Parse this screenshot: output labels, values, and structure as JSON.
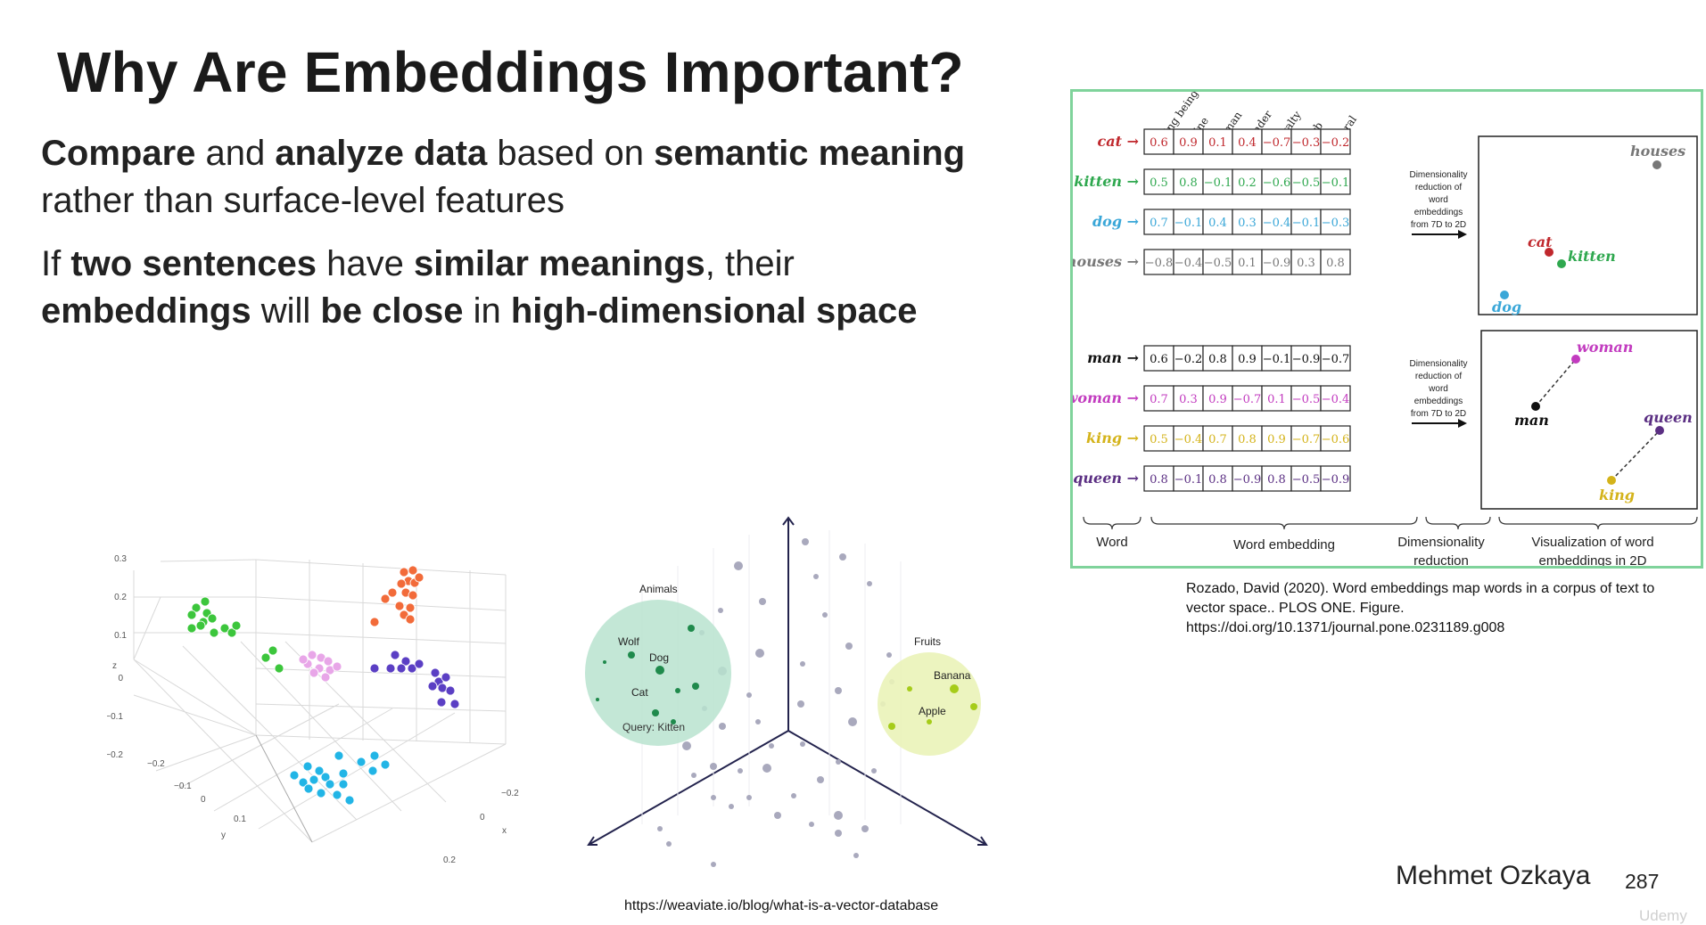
{
  "slide": {
    "title": "Why Are Embeddings Important?",
    "p1": {
      "s1": "Compare",
      "s2": " and ",
      "s3": "analyze data",
      "s4": " based on ",
      "s5": "semantic meaning",
      "s6": "rather than surface-level features"
    },
    "p2": {
      "s1": "If ",
      "s2": "two sentences",
      "s3": " have ",
      "s4": "similar meanings",
      "s5": ", their",
      "s6": "embeddings",
      "s7": " will ",
      "s8": "be close",
      "s9": " in ",
      "s10": "high-dimensional space"
    },
    "author": "Mehmet Ozkaya",
    "page_number": "287",
    "watermark": "Udemy",
    "citation_right": "Rozado, David (2020). Word embeddings map words in a corpus of text to vector space.. PLOS ONE. Figure. https://doi.org/10.1371/journal.pone.0231189.g008",
    "citation_bottom": "https://weaviate.io/blog/what-is-a-vector-database"
  },
  "embedding_figure": {
    "features": [
      "living being",
      "feline",
      "human",
      "gender",
      "royalty",
      "verb",
      "plural"
    ],
    "group1": [
      {
        "word": "cat",
        "color": "#c0282d",
        "values": [
          "0.6",
          "0.9",
          "0.1",
          "0.4",
          "−0.7",
          "−0.3",
          "−0.2"
        ]
      },
      {
        "word": "kitten",
        "color": "#2fa84f",
        "values": [
          "0.5",
          "0.8",
          "−0.1",
          "0.2",
          "−0.6",
          "−0.5",
          "−0.1"
        ]
      },
      {
        "word": "dog",
        "color": "#3aa7d8",
        "values": [
          "0.7",
          "−0.1",
          "0.4",
          "0.3",
          "−0.4",
          "−0.1",
          "−0.3"
        ]
      },
      {
        "word": "houses",
        "color": "#777777",
        "values": [
          "−0.8",
          "−0.4",
          "−0.5",
          "0.1",
          "−0.9",
          "0.3",
          "0.8"
        ]
      }
    ],
    "group2": [
      {
        "word": "man",
        "color": "#111111",
        "values": [
          "0.6",
          "−0.2",
          "0.8",
          "0.9",
          "−0.1",
          "−0.9",
          "−0.7"
        ]
      },
      {
        "word": "woman",
        "color": "#c23bbf",
        "values": [
          "0.7",
          "0.3",
          "0.9",
          "−0.7",
          "0.1",
          "−0.5",
          "−0.4"
        ]
      },
      {
        "word": "king",
        "color": "#d4b31a",
        "values": [
          "0.5",
          "−0.4",
          "0.7",
          "0.8",
          "0.9",
          "−0.7",
          "−0.6"
        ]
      },
      {
        "word": "queen",
        "color": "#5b2f83",
        "values": [
          "0.8",
          "−0.1",
          "0.8",
          "−0.9",
          "0.8",
          "−0.5",
          "−0.9"
        ]
      }
    ],
    "reduction_label": [
      "Dimensionality",
      "reduction of",
      "word",
      "embeddings",
      "from 7D to 2D"
    ],
    "bottom_labels": {
      "word": "Word",
      "embedding": "Word embedding",
      "reduction": [
        "Dimensionality",
        "reduction"
      ],
      "visualization": [
        "Visualization of word",
        "embeddings  in 2D"
      ]
    }
  },
  "plot3d": {
    "z_ticks": [
      "0.3",
      "0.2",
      "0.1",
      "0",
      "−0.1",
      "−0.2"
    ],
    "y_ticks": [
      "−0.2",
      "−0.1",
      "0",
      "0.1"
    ],
    "x_ticks": [
      "−0.2",
      "0",
      "0.2"
    ],
    "axis_labels": {
      "x": "x",
      "y": "y",
      "z": "z"
    },
    "cluster_colors": [
      "#f26b3a",
      "#3cc63c",
      "#e8a6e8",
      "#5b3fc4",
      "#22b5e6"
    ]
  },
  "vector_db": {
    "animals_label": "Animals",
    "fruits_label": "Fruits",
    "items": [
      "Wolf",
      "Dog",
      "Cat",
      "Query: Kitten",
      "Banana",
      "Apple"
    ],
    "colors": {
      "animals": "#b9e3cf",
      "fruits": "#eaf3b8",
      "animal_dot": "#1f8a4c",
      "fruit_dot": "#a6cc1a"
    }
  }
}
